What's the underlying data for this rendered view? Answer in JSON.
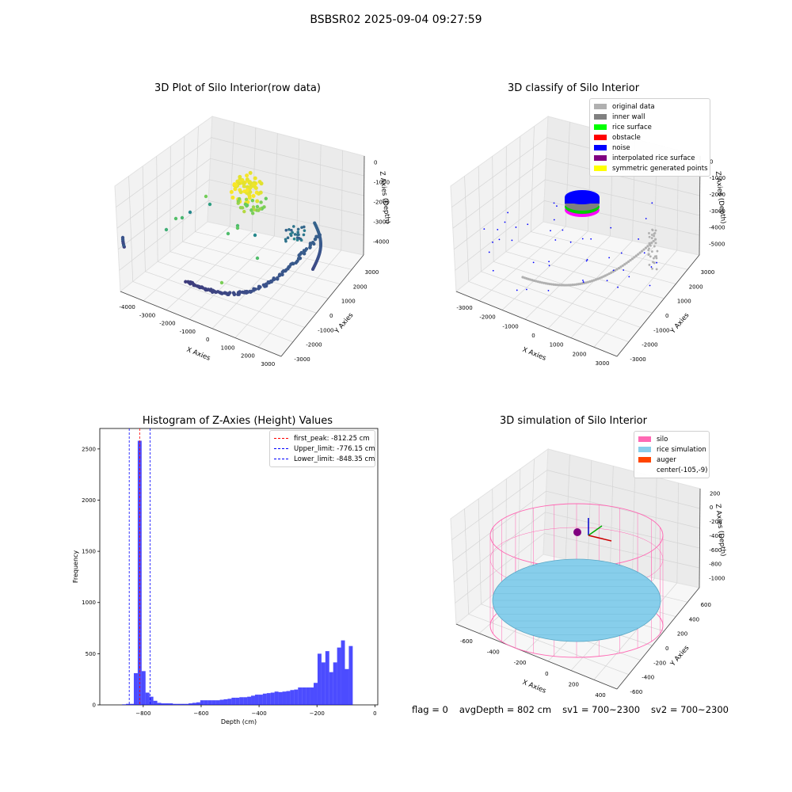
{
  "window": {
    "title": "BSBSR02 2025-09-04 09:27:59"
  },
  "status": {
    "flag": "flag = 0",
    "avg_depth": "avgDepth = 802 cm",
    "sv1": "sv1 = 700~2300",
    "sv2": "sv2 = 700~2300"
  },
  "chart_data": [
    {
      "type": "scatter",
      "title": "3D Plot of Silo Interior(row data)",
      "xlabel": "X Axies",
      "ylabel": "Y Axies",
      "zlabel": "Z Axies (Depth)",
      "xticks": [
        "-4000",
        "-3000",
        "-2000",
        "-1000",
        "0",
        "1000",
        "2000",
        "3000"
      ],
      "yticks": [
        "-3000",
        "-2000",
        "-1000",
        "0",
        "1000",
        "2000",
        "3000"
      ],
      "zticks": [
        "0",
        "-1000",
        "-2000",
        "-3000",
        "-4000"
      ],
      "xlim": [
        -4000,
        3000
      ],
      "ylim": [
        -3000,
        3000
      ],
      "zlim": [
        -4500,
        0
      ],
      "colormap": "viridis"
    },
    {
      "type": "scatter",
      "title": "3D classify of Silo Interior",
      "xlabel": "X Axies",
      "ylabel": "Y Axies",
      "zlabel": "Z Axies (Depth)",
      "xticks": [
        "-3000",
        "-2000",
        "-1000",
        "0",
        "1000",
        "2000",
        "3000"
      ],
      "yticks": [
        "-3000",
        "-2000",
        "-1000",
        "0",
        "1000",
        "2000",
        "3000"
      ],
      "zticks": [
        "0",
        "-1000",
        "-2000",
        "-3000",
        "-4000",
        "-5000"
      ],
      "xlim": [
        -3000,
        3000
      ],
      "ylim": [
        -3000,
        3000
      ],
      "zlim": [
        -5000,
        0
      ],
      "legend": {
        "placement": "top-right",
        "items": [
          {
            "label": "original data",
            "color": "#b0b0b0"
          },
          {
            "label": "inner wall",
            "color": "#808080"
          },
          {
            "label": "rice surface",
            "color": "#00ff00"
          },
          {
            "label": "obstacle",
            "color": "#ff0000"
          },
          {
            "label": "noise",
            "color": "#0000ff"
          },
          {
            "label": "interpolated rice surface",
            "color": "#800080"
          },
          {
            "label": "symmetric generated points",
            "color": "#ffff00"
          }
        ]
      }
    },
    {
      "type": "bar",
      "title": "Histogram of Z-Axies (Height) Values",
      "xlabel": "Depth (cm)",
      "ylabel": "Frequency",
      "xlim": [
        -950,
        10
      ],
      "ylim": [
        0,
        2700
      ],
      "xticks": [
        -800,
        -600,
        -400,
        -200,
        0
      ],
      "yticks": [
        0,
        500,
        1000,
        1500,
        2000,
        2500
      ],
      "bin_width": 13.5,
      "bins_start": [
        -873,
        -859.5,
        -846,
        -832.5,
        -819,
        -805.5,
        -792,
        -778.5,
        -765,
        -751.5,
        -738,
        -724.5,
        -711,
        -697.5,
        -684,
        -670.5,
        -657,
        -643.5,
        -630,
        -616.5,
        -603,
        -589.5,
        -576,
        -562.5,
        -549,
        -535.5,
        -522,
        -508.5,
        -495,
        -481.5,
        -468,
        -454.5,
        -441,
        -427.5,
        -414,
        -400.5,
        -387,
        -373.5,
        -360,
        -346.5,
        -333,
        -319.5,
        -306,
        -292.5,
        -279,
        -265.5,
        -252,
        -238.5,
        -225,
        -211.5,
        -198,
        -184.5,
        -171,
        -157.5,
        -144,
        -130.5,
        -117,
        -103.5,
        -90,
        -76.5,
        -63,
        -49.5,
        -36,
        -22.5,
        -9
      ],
      "values": [
        5,
        10,
        10,
        310,
        2580,
        330,
        120,
        80,
        40,
        20,
        15,
        15,
        15,
        10,
        10,
        10,
        10,
        15,
        20,
        25,
        45,
        45,
        45,
        45,
        45,
        50,
        55,
        60,
        70,
        70,
        75,
        75,
        80,
        90,
        100,
        100,
        110,
        115,
        120,
        130,
        125,
        130,
        135,
        145,
        150,
        170,
        170,
        170,
        170,
        215,
        500,
        415,
        525,
        320,
        415,
        560,
        630,
        350,
        575,
        0,
        0,
        0,
        0,
        0,
        0
      ],
      "bar_color": "#0000ff",
      "legend": {
        "placement": "top-right",
        "items": [
          {
            "label": "first_peak: -812.25 cm",
            "color": "#ff0000",
            "value": -812.25
          },
          {
            "label": "Upper_limit: -776.15 cm",
            "color": "#0000ff",
            "value": -776.15
          },
          {
            "label": "Lower_limit: -848.35 cm",
            "color": "#0000ff",
            "value": -848.35
          }
        ]
      }
    },
    {
      "type": "scatter",
      "title": "3D simulation of Silo Interior",
      "xlabel": "X Axies",
      "ylabel": "Y Axies",
      "zlabel": "Z Axies (Depth)",
      "xticks": [
        "-600",
        "-400",
        "-200",
        "0",
        "200",
        "400"
      ],
      "yticks": [
        "-600",
        "-400",
        "-200",
        "0",
        "200",
        "400",
        "600"
      ],
      "zticks": [
        "200",
        "0",
        "-200",
        "-400",
        "-600",
        "-800",
        "-1000"
      ],
      "xlim": [
        -700,
        500
      ],
      "ylim": [
        -700,
        700
      ],
      "zlim": [
        -1100,
        300
      ],
      "legend": {
        "placement": "top-right",
        "items": [
          {
            "label": "silo",
            "color": "#ff69b4"
          },
          {
            "label": "rice simulation",
            "color": "#87ceeb"
          },
          {
            "label": "auger",
            "color": "#ff4500"
          },
          {
            "label": "center(-105,-9)",
            "color": ""
          }
        ]
      }
    }
  ]
}
